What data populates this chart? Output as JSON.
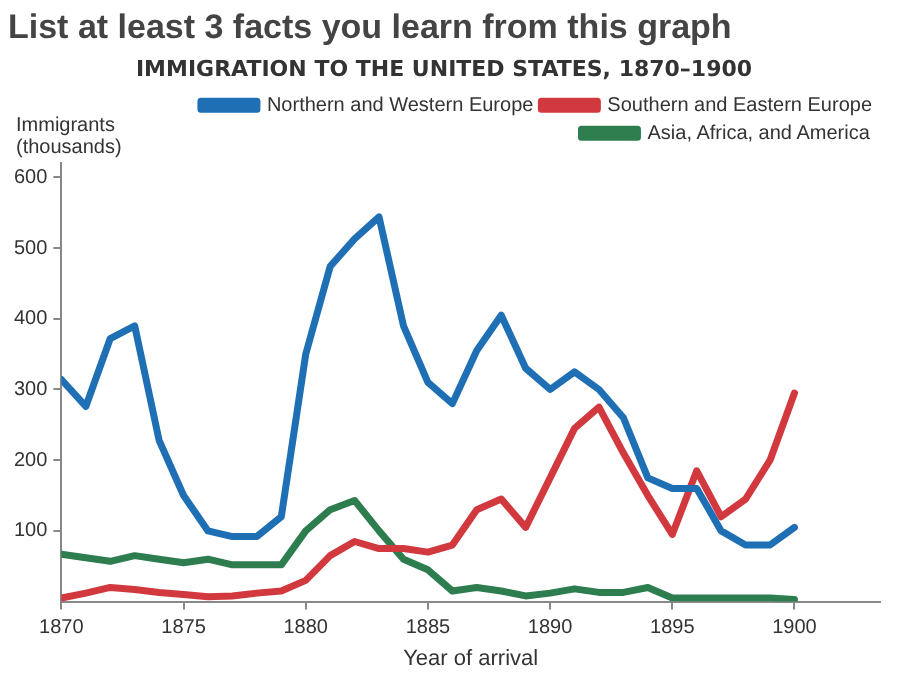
{
  "chart_data": {
    "type": "line",
    "title": "List at least 3 facts you learn from this graph",
    "subtitle": "IMMIGRATION TO THE UNITED STATES, 1870–1900",
    "xlabel": "Year of arrival",
    "ylabel": "Immigrants (thousands)",
    "x": [
      1870,
      1871,
      1872,
      1873,
      1874,
      1875,
      1876,
      1877,
      1878,
      1879,
      1880,
      1881,
      1882,
      1883,
      1884,
      1885,
      1886,
      1887,
      1888,
      1889,
      1890,
      1891,
      1892,
      1893,
      1894,
      1895,
      1896,
      1897,
      1898,
      1899,
      1900
    ],
    "series": [
      {
        "name": "Northern and Western Europe",
        "color": "#1f6fb4",
        "values": [
          314,
          276,
          372,
          390,
          228,
          150,
          100,
          92,
          92,
          120,
          350,
          474,
          513,
          544,
          390,
          310,
          280,
          355,
          405,
          330,
          300,
          325,
          300,
          260,
          175,
          160,
          160,
          100,
          80,
          80,
          105
        ]
      },
      {
        "name": "Southern and Eastern Europe",
        "color": "#d2393f",
        "values": [
          5,
          12,
          20,
          17,
          13,
          10,
          7,
          8,
          12,
          15,
          30,
          65,
          85,
          75,
          75,
          70,
          80,
          130,
          145,
          105,
          175,
          245,
          275,
          210,
          150,
          95,
          185,
          120,
          145,
          200,
          295
        ]
      },
      {
        "name": "Asia, Africa, and America",
        "color": "#2e7d4f",
        "values": [
          67,
          62,
          57,
          65,
          60,
          55,
          60,
          52,
          52,
          52,
          100,
          130,
          143,
          100,
          60,
          45,
          15,
          20,
          15,
          8,
          12,
          18,
          13,
          13,
          20,
          5,
          5,
          5,
          5,
          5,
          3
        ]
      }
    ],
    "xlim": [
      1870,
      1903.5
    ],
    "xticks": [
      1870,
      1875,
      1880,
      1885,
      1890,
      1895,
      1900
    ],
    "ylim": [
      0,
      620
    ],
    "yticks": [
      100,
      200,
      300,
      400,
      500,
      600
    ],
    "legend": "top right",
    "grid": false,
    "marker": "none",
    "line_style": "solid"
  }
}
